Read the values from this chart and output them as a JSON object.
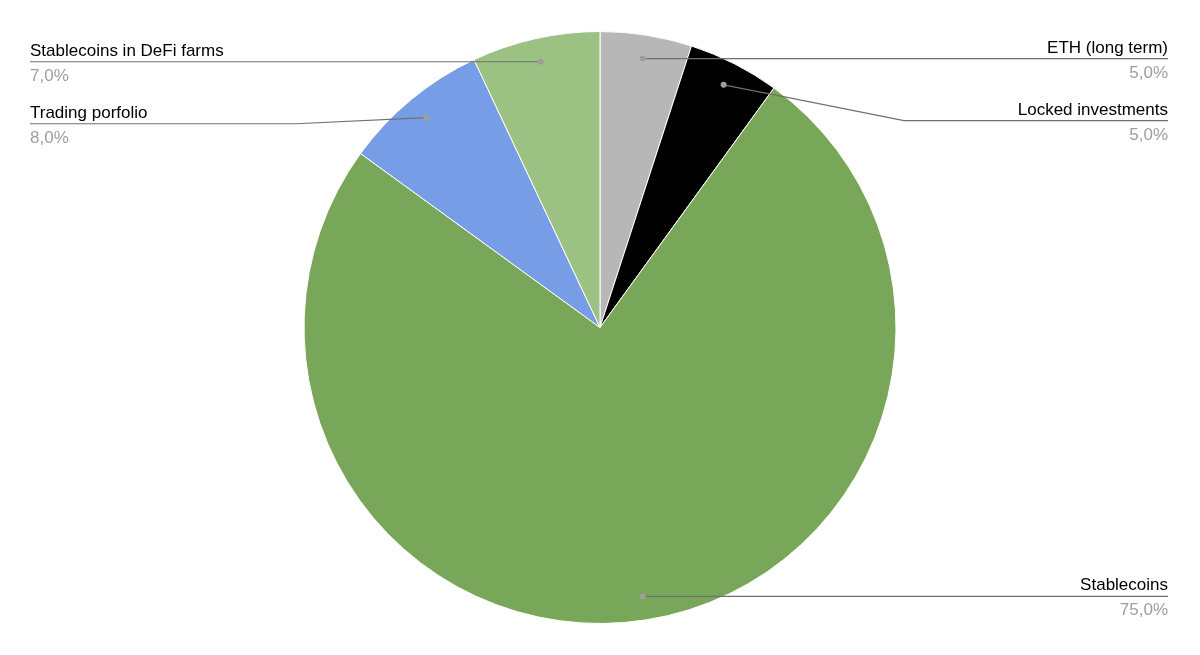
{
  "chart_data": {
    "type": "pie",
    "categories": [
      "ETH (long term)",
      "Locked investments",
      "Stablecoins",
      "Trading porfolio",
      "Stablecoins in DeFi farms"
    ],
    "values": [
      5,
      5,
      75,
      8,
      7
    ],
    "colors": [
      "#b7b7b7",
      "#000000",
      "#78a75a",
      "#779de6",
      "#9bc283"
    ],
    "value_labels": [
      "5,0%",
      "5,0%",
      "75,0%",
      "8,0%",
      "7,0%"
    ]
  }
}
